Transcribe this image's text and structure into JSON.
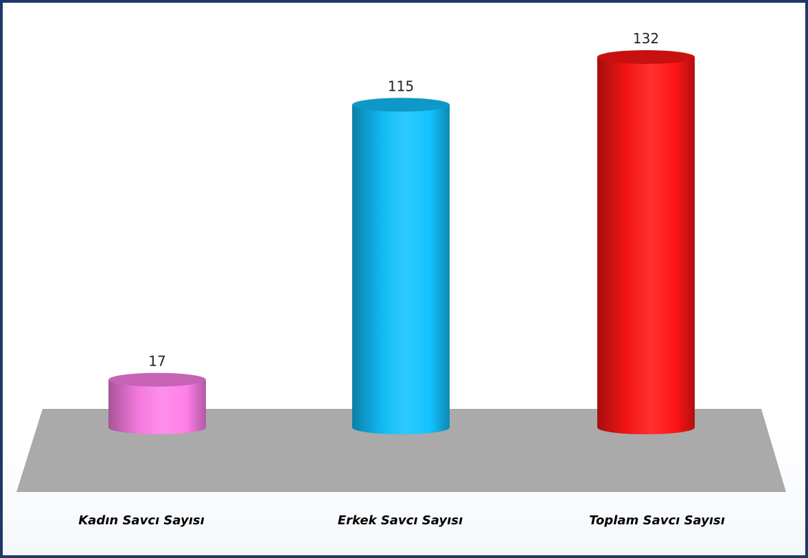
{
  "chart_data": {
    "type": "bar",
    "style": "3d-cylinder",
    "categories": [
      "Kadın Savcı Sayısı",
      "Erkek Savcı Sayısı",
      "Toplam Savcı Sayısı"
    ],
    "values": [
      17,
      115,
      132
    ],
    "value_labels": [
      "17",
      "115",
      "132"
    ],
    "colors": [
      "#ff7fe8",
      "#12c3ff",
      "#ff1515"
    ],
    "floor_color": "#aaaaaa",
    "border_color": "#1f3866",
    "title": "",
    "xlabel": "",
    "ylabel": "",
    "ylim": [
      0,
      132
    ],
    "grid": false,
    "legend": "none"
  }
}
